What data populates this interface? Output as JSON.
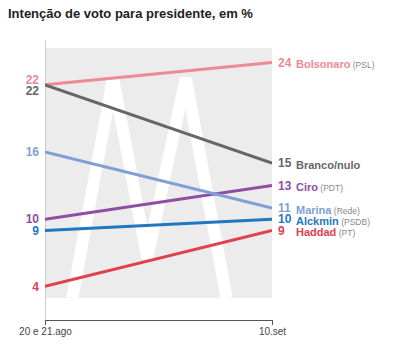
{
  "chart_data": {
    "type": "line",
    "title": "Intenção de voto para presidente, em %",
    "categories": [
      "20 e 21.ago",
      "10.set"
    ],
    "series": [
      {
        "name": "Bolsonaro (PSL)",
        "color": "#ee8a93",
        "values": [
          22,
          24
        ]
      },
      {
        "name": "Branco/nulo",
        "color": "#666666",
        "values": [
          22,
          15
        ]
      },
      {
        "name": "Ciro (PDT)",
        "color": "#8e4ea3",
        "values": [
          10,
          13
        ]
      },
      {
        "name": "Marina (Rede)",
        "color": "#7f9fd6",
        "values": [
          16,
          11
        ]
      },
      {
        "name": "Alckmin (PSDB)",
        "color": "#1f77c0",
        "values": [
          9,
          10
        ]
      },
      {
        "name": "Haddad (PT)",
        "color": "#e0404f",
        "values": [
          4,
          9
        ]
      }
    ],
    "ylim": [
      1,
      26
    ],
    "data_labels": true,
    "tick_labels": "x"
  }
}
